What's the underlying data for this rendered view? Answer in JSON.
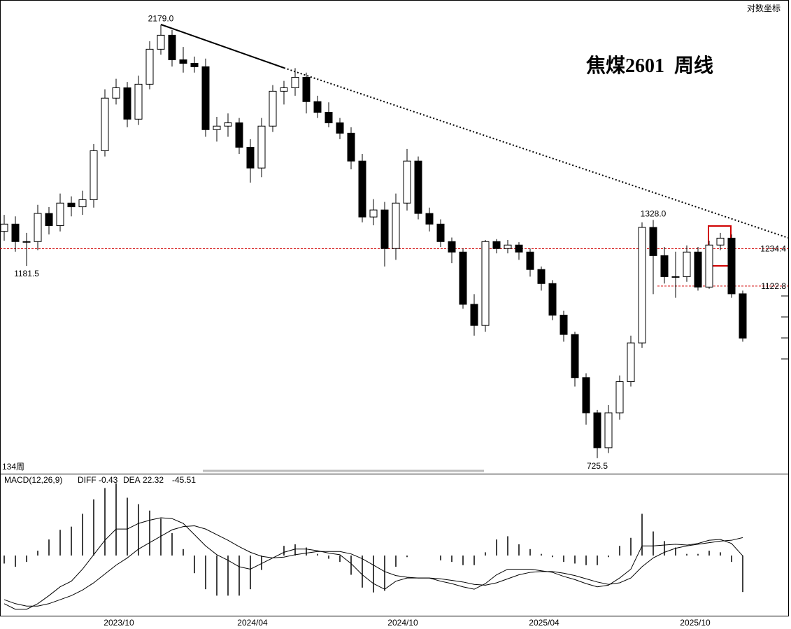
{
  "chart_data": [
    {
      "type": "candlestick",
      "title": "焦煤2601  周线",
      "scale_label": "对数坐标",
      "period_label": "134周",
      "log": true,
      "ylim": [
        700,
        2300
      ],
      "x_labels": [
        "2023/10",
        "2024/04",
        "2024/10",
        "2025/04",
        "2025/10"
      ],
      "open": [
        1290,
        1314,
        1257,
        1257,
        1350,
        1309,
        1386,
        1373,
        1398,
        1583,
        1809,
        1857,
        1715,
        1874,
        2048,
        2122,
        1994,
        1976,
        1959,
        1670,
        1685,
        1699,
        1597,
        1515,
        1685,
        1841,
        1857,
        1907,
        1793,
        1745,
        1699,
        1655,
        1542,
        1338,
        1362,
        1235,
        1386,
        1542,
        1350,
        1314,
        1257,
        1224,
        1072,
        1016,
        1257,
        1235,
        1246,
        1224,
        1171,
        1130,
        1043,
        993,
        890,
        814,
        745,
        814,
        881,
        972,
        1303,
        1213,
        1150,
        1150,
        1224,
        1120,
        1246,
        1268,
        1101
      ],
      "high": [
        1345,
        1340,
        1285,
        1380,
        1372,
        1420,
        1410,
        1430,
        1610,
        1850,
        1900,
        1885,
        1915,
        2090,
        2179,
        2150,
        2060,
        2010,
        2000,
        1725,
        1740,
        1720,
        1630,
        1720,
        1870,
        1890,
        1952,
        1930,
        1820,
        1790,
        1720,
        1680,
        1570,
        1400,
        1390,
        1420,
        1590,
        1560,
        1370,
        1330,
        1270,
        1235,
        1100,
        1262,
        1265,
        1262,
        1255,
        1235,
        1180,
        1140,
        1055,
        1000,
        900,
        820,
        830,
        895,
        990,
        1320,
        1328,
        1240,
        1225,
        1245,
        1240,
        1260,
        1285,
        1280,
        1110
      ],
      "low": [
        1260,
        1225,
        1181.5,
        1230,
        1280,
        1290,
        1340,
        1345,
        1370,
        1560,
        1780,
        1680,
        1690,
        1850,
        2020,
        1960,
        1930,
        1930,
        1640,
        1620,
        1640,
        1570,
        1460,
        1480,
        1660,
        1780,
        1820,
        1740,
        1720,
        1680,
        1630,
        1510,
        1320,
        1310,
        1180,
        1200,
        1360,
        1330,
        1290,
        1240,
        1190,
        1060,
        990,
        1000,
        1220,
        1220,
        1200,
        1150,
        1110,
        1030,
        975,
        870,
        790,
        725.5,
        735,
        800,
        870,
        960,
        1100,
        1130,
        1090,
        1135,
        1110,
        1115,
        1230,
        1090,
        975
      ],
      "close": [
        1314,
        1257,
        1257,
        1350,
        1309,
        1386,
        1373,
        1398,
        1583,
        1809,
        1857,
        1715,
        1874,
        2048,
        2122,
        1994,
        1976,
        1959,
        1670,
        1685,
        1699,
        1597,
        1515,
        1685,
        1841,
        1857,
        1907,
        1793,
        1745,
        1699,
        1655,
        1542,
        1338,
        1362,
        1235,
        1386,
        1542,
        1350,
        1314,
        1257,
        1224,
        1072,
        1016,
        1257,
        1235,
        1246,
        1224,
        1171,
        1130,
        1043,
        993,
        890,
        814,
        745,
        814,
        881,
        972,
        1303,
        1213,
        1150,
        1150,
        1224,
        1120,
        1246,
        1268,
        1101,
        984
      ],
      "extremes": [
        {
          "value": 2179,
          "label": "2179.0"
        },
        {
          "value": 1181.5,
          "label": "1181.5"
        },
        {
          "value": 1328,
          "label": "1328.0"
        },
        {
          "value": 725.5,
          "label": "725.5"
        }
      ],
      "levels": [
        1234.4,
        1122.8
      ],
      "level_color": "#d00000",
      "up_color": "#ffffff",
      "down_color": "#000000"
    },
    {
      "type": "macd",
      "title": "MACD(12,26,9)",
      "diff_name": "DIFF",
      "dea_name": "DEA",
      "ylim": [
        -75,
        95
      ],
      "diff": [
        -60,
        -67,
        -67,
        -60,
        -50,
        -39,
        -32,
        -17,
        1,
        19,
        33,
        33,
        40,
        44,
        47,
        46,
        40,
        26,
        12,
        1,
        -6,
        -14,
        -17,
        -10,
        -3,
        4,
        8,
        8,
        6,
        3,
        1,
        -10,
        -24,
        -35,
        -42,
        -32,
        -28,
        -28,
        -28,
        -32,
        -35,
        -39,
        -42,
        -35,
        -24,
        -17,
        -17,
        -17,
        -19,
        -21,
        -26,
        -30,
        -35,
        -39,
        -37,
        -28,
        -17,
        12,
        12,
        13,
        14,
        13,
        15,
        19,
        20,
        15,
        -0.43
      ],
      "dea": [
        -55,
        -60,
        -63,
        -63,
        -60,
        -55,
        -50,
        -43,
        -34,
        -23,
        -12,
        -3,
        8,
        16,
        24,
        32,
        36,
        37,
        33,
        26,
        19,
        11,
        4,
        -1,
        -3,
        -2,
        1,
        3,
        5,
        5,
        5,
        2,
        -4,
        -12,
        -20,
        -25,
        -27,
        -28,
        -28,
        -29,
        -31,
        -33,
        -36,
        -37,
        -34,
        -29,
        -24,
        -21,
        -20,
        -20,
        -22,
        -25,
        -29,
        -33,
        -36,
        -34,
        -28,
        -14,
        -3,
        4,
        9,
        12,
        14,
        16,
        18,
        19,
        22.32
      ],
      "hist": [
        -10,
        -14,
        -8,
        6,
        20,
        32,
        36,
        52,
        70,
        84,
        90,
        72,
        64,
        56,
        46,
        28,
        8,
        -22,
        -42,
        -50,
        -50,
        -50,
        -42,
        -18,
        0,
        12,
        14,
        10,
        2,
        -4,
        -8,
        -24,
        -40,
        -46,
        -44,
        -14,
        -2,
        0,
        0,
        -6,
        -8,
        -12,
        -12,
        4,
        20,
        24,
        14,
        8,
        2,
        -2,
        -8,
        -10,
        -12,
        -12,
        -2,
        12,
        22,
        52,
        30,
        18,
        10,
        2,
        2,
        6,
        4,
        -8,
        -45.51
      ]
    }
  ]
}
